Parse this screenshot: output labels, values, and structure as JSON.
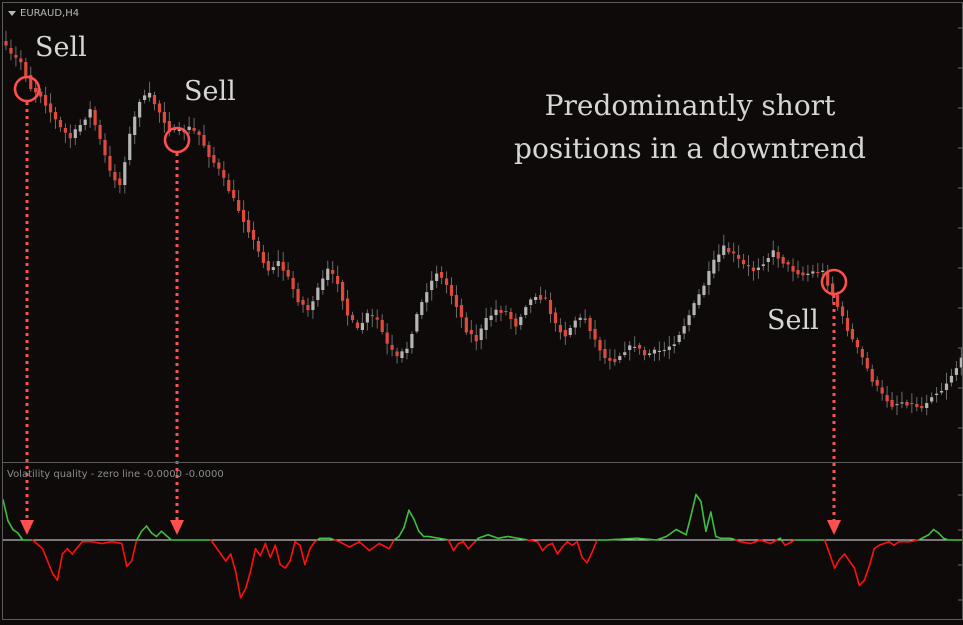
{
  "chart": {
    "symbol_label": "EURAUD,H4",
    "indicator_label": "Volatility quality - zero line -0.0000 -0.0000",
    "up_color": "#b5b5b5",
    "down_color": "#e04a3c",
    "annotation_color": "#ff4f4f",
    "background": "#0d0a09"
  },
  "annotations": {
    "sell_1": "Sell",
    "sell_2": "Sell",
    "sell_3": "Sell",
    "headline": "Predominantly short positions in a downtrend"
  },
  "chart_data": [
    {
      "type": "candlestick",
      "title": "EURAUD,H4",
      "y_anchors": [
        [
          0,
          41
        ],
        [
          2,
          55
        ],
        [
          4,
          62
        ],
        [
          6,
          88
        ],
        [
          8,
          95
        ],
        [
          10,
          112
        ],
        [
          12,
          128
        ],
        [
          14,
          138
        ],
        [
          16,
          125
        ],
        [
          18,
          110
        ],
        [
          20,
          140
        ],
        [
          22,
          172
        ],
        [
          24,
          185
        ],
        [
          26,
          135
        ],
        [
          28,
          100
        ],
        [
          30,
          95
        ],
        [
          32,
          112
        ],
        [
          34,
          130
        ],
        [
          36,
          132
        ],
        [
          38,
          128
        ],
        [
          40,
          135
        ],
        [
          42,
          155
        ],
        [
          44,
          170
        ],
        [
          46,
          190
        ],
        [
          48,
          210
        ],
        [
          50,
          230
        ],
        [
          52,
          252
        ],
        [
          54,
          270
        ],
        [
          56,
          262
        ],
        [
          58,
          278
        ],
        [
          60,
          300
        ],
        [
          62,
          310
        ],
        [
          64,
          290
        ],
        [
          66,
          270
        ],
        [
          68,
          282
        ],
        [
          70,
          315
        ],
        [
          72,
          330
        ],
        [
          74,
          315
        ],
        [
          76,
          320
        ],
        [
          78,
          345
        ],
        [
          80,
          358
        ],
        [
          82,
          348
        ],
        [
          84,
          315
        ],
        [
          86,
          290
        ],
        [
          88,
          272
        ],
        [
          90,
          285
        ],
        [
          92,
          305
        ],
        [
          94,
          330
        ],
        [
          96,
          340
        ],
        [
          98,
          320
        ],
        [
          100,
          310
        ],
        [
          102,
          312
        ],
        [
          104,
          325
        ],
        [
          106,
          305
        ],
        [
          108,
          295
        ],
        [
          110,
          300
        ],
        [
          112,
          325
        ],
        [
          114,
          335
        ],
        [
          116,
          320
        ],
        [
          118,
          318
        ],
        [
          120,
          340
        ],
        [
          122,
          358
        ],
        [
          124,
          360
        ],
        [
          126,
          350
        ],
        [
          128,
          345
        ],
        [
          130,
          355
        ],
        [
          132,
          352
        ],
        [
          134,
          350
        ],
        [
          136,
          342
        ],
        [
          138,
          325
        ],
        [
          140,
          305
        ],
        [
          142,
          285
        ],
        [
          144,
          262
        ],
        [
          146,
          248
        ],
        [
          148,
          255
        ],
        [
          150,
          265
        ],
        [
          152,
          270
        ],
        [
          154,
          262
        ],
        [
          156,
          252
        ],
        [
          158,
          262
        ],
        [
          160,
          270
        ],
        [
          162,
          275
        ],
        [
          164,
          272
        ],
        [
          166,
          272
        ],
        [
          168,
          295
        ],
        [
          170,
          318
        ],
        [
          172,
          340
        ],
        [
          174,
          358
        ],
        [
          176,
          380
        ],
        [
          178,
          395
        ],
        [
          180,
          405
        ],
        [
          182,
          402
        ],
        [
          184,
          404
        ],
        [
          186,
          408
        ],
        [
          188,
          395
        ],
        [
          190,
          390
        ],
        [
          192,
          375
        ],
        [
          194,
          360
        ]
      ]
    },
    {
      "type": "line",
      "title": "Volatility quality - zero line -0.0000 -0.0000",
      "up_color": "#3fbf3f",
      "down_color": "#ff1010",
      "y_anchors": [
        [
          0,
          2.3
        ],
        [
          1,
          1.1
        ],
        [
          2,
          0.6
        ],
        [
          3,
          0.4
        ],
        [
          4,
          0
        ],
        [
          6,
          0
        ],
        [
          8,
          -0.5
        ],
        [
          10,
          -1.9
        ],
        [
          11,
          -2.3
        ],
        [
          12,
          -0.8
        ],
        [
          13,
          -0.5
        ],
        [
          14,
          -0.8
        ],
        [
          16,
          -0.1
        ],
        [
          18,
          -0.1
        ],
        [
          20,
          -0.2
        ],
        [
          22,
          -0.1
        ],
        [
          24,
          -0.2
        ],
        [
          25,
          -1.5
        ],
        [
          26,
          -1.2
        ],
        [
          27,
          0
        ],
        [
          28,
          0.5
        ],
        [
          29,
          0.8
        ],
        [
          30,
          0.4
        ],
        [
          31,
          0.2
        ],
        [
          32,
          0.5
        ],
        [
          34,
          0
        ],
        [
          42,
          0
        ],
        [
          44,
          -0.8
        ],
        [
          45,
          -1.2
        ],
        [
          46,
          -0.8
        ],
        [
          47,
          -1.8
        ],
        [
          48,
          -3.3
        ],
        [
          49,
          -2.8
        ],
        [
          50,
          -1.8
        ],
        [
          51,
          -0.5
        ],
        [
          52,
          -0.9
        ],
        [
          53,
          -0.2
        ],
        [
          54,
          -1.0
        ],
        [
          55,
          -0.3
        ],
        [
          56,
          -1.4
        ],
        [
          57,
          -1.6
        ],
        [
          58,
          -1.2
        ],
        [
          59,
          -0.1
        ],
        [
          60,
          -0.3
        ],
        [
          61,
          -1.4
        ],
        [
          62,
          -0.5
        ],
        [
          63,
          -0.1
        ],
        [
          64,
          0.1
        ],
        [
          66,
          0.1
        ],
        [
          68,
          -0.1
        ],
        [
          70,
          -0.4
        ],
        [
          72,
          -0.1
        ],
        [
          74,
          -0.6
        ],
        [
          76,
          -0.2
        ],
        [
          78,
          -0.5
        ],
        [
          79,
          0
        ],
        [
          80,
          0.2
        ],
        [
          81,
          0.7
        ],
        [
          82,
          1.7
        ],
        [
          83,
          1.2
        ],
        [
          84,
          0.5
        ],
        [
          85,
          0.2
        ],
        [
          86,
          0.2
        ],
        [
          88,
          0.1
        ],
        [
          90,
          0
        ],
        [
          91,
          -0.6
        ],
        [
          92,
          -0.2
        ],
        [
          93,
          -0.1
        ],
        [
          94,
          -0.5
        ],
        [
          96,
          0.1
        ],
        [
          98,
          0.3
        ],
        [
          100,
          0.1
        ],
        [
          102,
          0.2
        ],
        [
          104,
          0.1
        ],
        [
          106,
          0
        ],
        [
          108,
          -0.1
        ],
        [
          109,
          -0.6
        ],
        [
          110,
          -0.3
        ],
        [
          111,
          -0.2
        ],
        [
          112,
          -0.8
        ],
        [
          113,
          -0.4
        ],
        [
          114,
          -0.1
        ],
        [
          115,
          -0.3
        ],
        [
          116,
          -0.1
        ],
        [
          117,
          -1.0
        ],
        [
          118,
          -1.3
        ],
        [
          119,
          -0.7
        ],
        [
          120,
          0
        ],
        [
          122,
          0
        ],
        [
          128,
          0.1
        ],
        [
          132,
          0
        ],
        [
          134,
          0.2
        ],
        [
          136,
          0.6
        ],
        [
          138,
          0.3
        ],
        [
          139,
          1.4
        ],
        [
          140,
          2.6
        ],
        [
          141,
          2.2
        ],
        [
          142,
          0.5
        ],
        [
          143,
          1.6
        ],
        [
          144,
          0.2
        ],
        [
          145,
          0.1
        ],
        [
          147,
          0.1
        ],
        [
          149,
          -0.1
        ],
        [
          151,
          -0.2
        ],
        [
          153,
          0
        ],
        [
          155,
          -0.2
        ],
        [
          157,
          0.1
        ],
        [
          158,
          -0.3
        ],
        [
          160,
          0
        ],
        [
          162,
          0
        ],
        [
          166,
          0
        ],
        [
          167,
          -0.8
        ],
        [
          168,
          -1.6
        ],
        [
          169,
          -1.1
        ],
        [
          170,
          -0.8
        ],
        [
          171,
          -1.2
        ],
        [
          172,
          -1.6
        ],
        [
          173,
          -2.6
        ],
        [
          174,
          -2.3
        ],
        [
          175,
          -1.5
        ],
        [
          176,
          -0.5
        ],
        [
          177,
          -0.3
        ],
        [
          178,
          -0.2
        ],
        [
          179,
          -0.1
        ],
        [
          180,
          -0.3
        ],
        [
          181,
          -0.1
        ],
        [
          183,
          -0.1
        ],
        [
          185,
          0
        ],
        [
          187,
          0.3
        ],
        [
          188,
          0.6
        ],
        [
          189,
          0.4
        ],
        [
          190,
          0.1
        ],
        [
          191,
          0
        ],
        [
          194,
          0
        ]
      ],
      "zero_line": 0
    }
  ]
}
